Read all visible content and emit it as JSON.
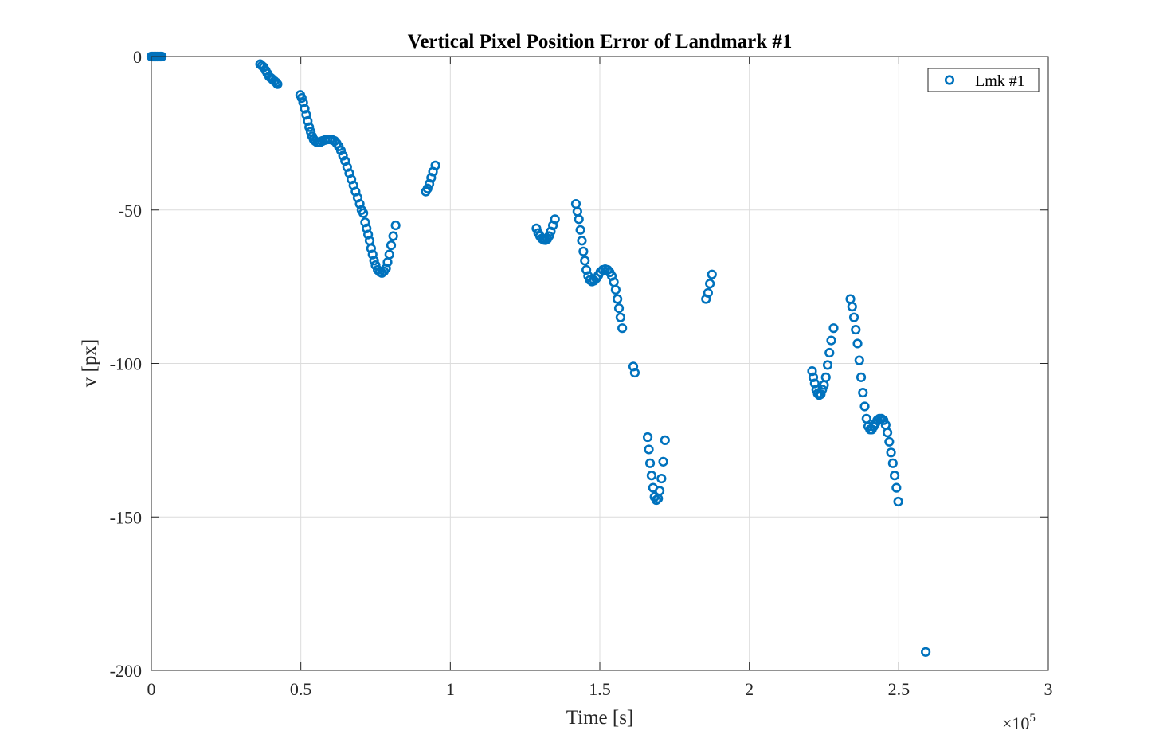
{
  "chart_data": {
    "type": "scatter",
    "title": "Vertical Pixel Position Error of Landmark #1",
    "xlabel": "Time [s]",
    "ylabel": "v [px]",
    "x_exponent_label": "×10",
    "x_exponent_power": "5",
    "xlim": [
      0,
      3
    ],
    "ylim": [
      -200,
      0
    ],
    "xticks": [
      "0",
      "0.5",
      "1",
      "1.5",
      "2",
      "2.5",
      "3"
    ],
    "yticks": [
      "0",
      "-50",
      "-100",
      "-150",
      "-200"
    ],
    "grid": true,
    "legend_position": "top-right",
    "series": [
      {
        "name": "Lmk #1",
        "color": "#0072bd",
        "marker": "circle-open",
        "points": [
          [
            0.0,
            0
          ],
          [
            0.005,
            0
          ],
          [
            0.01,
            0
          ],
          [
            0.015,
            0
          ],
          [
            0.02,
            0
          ],
          [
            0.025,
            0
          ],
          [
            0.03,
            0
          ],
          [
            0.035,
            0
          ],
          [
            0.364,
            -2.5
          ],
          [
            0.37,
            -3
          ],
          [
            0.376,
            -3.5
          ],
          [
            0.382,
            -4.5
          ],
          [
            0.388,
            -5.5
          ],
          [
            0.394,
            -6.5
          ],
          [
            0.4,
            -7
          ],
          [
            0.406,
            -7.5
          ],
          [
            0.412,
            -8
          ],
          [
            0.418,
            -8.5
          ],
          [
            0.422,
            -9
          ],
          [
            0.498,
            -12.5
          ],
          [
            0.503,
            -13.5
          ],
          [
            0.508,
            -15
          ],
          [
            0.513,
            -17
          ],
          [
            0.518,
            -19
          ],
          [
            0.523,
            -21
          ],
          [
            0.528,
            -23
          ],
          [
            0.533,
            -24.5
          ],
          [
            0.538,
            -26
          ],
          [
            0.543,
            -27
          ],
          [
            0.548,
            -27.5
          ],
          [
            0.555,
            -28
          ],
          [
            0.563,
            -28
          ],
          [
            0.572,
            -27.5
          ],
          [
            0.581,
            -27.2
          ],
          [
            0.59,
            -27
          ],
          [
            0.598,
            -27
          ],
          [
            0.606,
            -27.2
          ],
          [
            0.613,
            -27.5
          ],
          [
            0.62,
            -28.3
          ],
          [
            0.627,
            -29.3
          ],
          [
            0.634,
            -30.6
          ],
          [
            0.641,
            -32.3
          ],
          [
            0.648,
            -34
          ],
          [
            0.655,
            -36
          ],
          [
            0.662,
            -38
          ],
          [
            0.669,
            -40
          ],
          [
            0.676,
            -42
          ],
          [
            0.683,
            -44
          ],
          [
            0.69,
            -46
          ],
          [
            0.697,
            -48
          ],
          [
            0.703,
            -50
          ],
          [
            0.709,
            -51
          ],
          [
            0.715,
            -54
          ],
          [
            0.72,
            -56
          ],
          [
            0.725,
            -58
          ],
          [
            0.73,
            -60
          ],
          [
            0.735,
            -62.5
          ],
          [
            0.74,
            -64.5
          ],
          [
            0.745,
            -66.5
          ],
          [
            0.75,
            -68
          ],
          [
            0.757,
            -69.5
          ],
          [
            0.764,
            -70.2
          ],
          [
            0.771,
            -70.5
          ],
          [
            0.778,
            -70
          ],
          [
            0.785,
            -69
          ],
          [
            0.79,
            -67
          ],
          [
            0.796,
            -64.5
          ],
          [
            0.802,
            -61.5
          ],
          [
            0.809,
            -58.5
          ],
          [
            0.817,
            -55
          ],
          [
            0.918,
            -44
          ],
          [
            0.924,
            -43
          ],
          [
            0.93,
            -41.5
          ],
          [
            0.936,
            -39.5
          ],
          [
            0.942,
            -37.5
          ],
          [
            0.95,
            -35.5
          ],
          [
            1.288,
            -56
          ],
          [
            1.294,
            -57.5
          ],
          [
            1.3,
            -58.5
          ],
          [
            1.306,
            -59.3
          ],
          [
            1.312,
            -59.7
          ],
          [
            1.318,
            -59.8
          ],
          [
            1.324,
            -59.5
          ],
          [
            1.33,
            -58.5
          ],
          [
            1.336,
            -57
          ],
          [
            1.343,
            -55
          ],
          [
            1.35,
            -53
          ],
          [
            1.42,
            -48
          ],
          [
            1.425,
            -50.5
          ],
          [
            1.43,
            -53
          ],
          [
            1.435,
            -56.5
          ],
          [
            1.44,
            -60
          ],
          [
            1.445,
            -63.5
          ],
          [
            1.45,
            -66.5
          ],
          [
            1.455,
            -69.5
          ],
          [
            1.461,
            -71.5
          ],
          [
            1.467,
            -72.8
          ],
          [
            1.474,
            -73.3
          ],
          [
            1.481,
            -73
          ],
          [
            1.488,
            -72.3
          ],
          [
            1.495,
            -71.3
          ],
          [
            1.502,
            -70.2
          ],
          [
            1.51,
            -69.5
          ],
          [
            1.518,
            -69.3
          ],
          [
            1.526,
            -69.5
          ],
          [
            1.533,
            -70.3
          ],
          [
            1.54,
            -71.5
          ],
          [
            1.547,
            -73.5
          ],
          [
            1.553,
            -76
          ],
          [
            1.559,
            -79
          ],
          [
            1.564,
            -82
          ],
          [
            1.569,
            -85
          ],
          [
            1.575,
            -88.5
          ],
          [
            1.612,
            -101
          ],
          [
            1.617,
            -103
          ],
          [
            1.66,
            -124
          ],
          [
            1.664,
            -128
          ],
          [
            1.668,
            -132.5
          ],
          [
            1.673,
            -136.5
          ],
          [
            1.678,
            -140.5
          ],
          [
            1.683,
            -143.5
          ],
          [
            1.689,
            -144.5
          ],
          [
            1.695,
            -144
          ],
          [
            1.7,
            -141.5
          ],
          [
            1.706,
            -137.5
          ],
          [
            1.712,
            -132
          ],
          [
            1.718,
            -125
          ],
          [
            1.855,
            -79
          ],
          [
            1.862,
            -77
          ],
          [
            1.868,
            -74
          ],
          [
            1.875,
            -71
          ],
          [
            2.21,
            -102.5
          ],
          [
            2.214,
            -104.5
          ],
          [
            2.219,
            -106.5
          ],
          [
            2.224,
            -108.5
          ],
          [
            2.229,
            -109.8
          ],
          [
            2.234,
            -110.3
          ],
          [
            2.239,
            -110
          ],
          [
            2.244,
            -108.5
          ],
          [
            2.25,
            -107
          ],
          [
            2.256,
            -104.5
          ],
          [
            2.262,
            -100.5
          ],
          [
            2.268,
            -96.5
          ],
          [
            2.274,
            -92.5
          ],
          [
            2.282,
            -88.5
          ],
          [
            2.338,
            -79
          ],
          [
            2.344,
            -81.5
          ],
          [
            2.35,
            -85
          ],
          [
            2.356,
            -89
          ],
          [
            2.362,
            -93.5
          ],
          [
            2.368,
            -99
          ],
          [
            2.374,
            -104.5
          ],
          [
            2.38,
            -109.5
          ],
          [
            2.386,
            -114
          ],
          [
            2.392,
            -118
          ],
          [
            2.398,
            -120.5
          ],
          [
            2.404,
            -121.5
          ],
          [
            2.41,
            -121.5
          ],
          [
            2.416,
            -120.5
          ],
          [
            2.422,
            -119.5
          ],
          [
            2.428,
            -118.5
          ],
          [
            2.435,
            -118
          ],
          [
            2.442,
            -118
          ],
          [
            2.449,
            -118.5
          ],
          [
            2.456,
            -120
          ],
          [
            2.462,
            -122.5
          ],
          [
            2.468,
            -125.5
          ],
          [
            2.474,
            -129
          ],
          [
            2.48,
            -132.5
          ],
          [
            2.486,
            -136.5
          ],
          [
            2.492,
            -140.5
          ],
          [
            2.498,
            -145
          ],
          [
            2.59,
            -194
          ]
        ]
      }
    ]
  }
}
